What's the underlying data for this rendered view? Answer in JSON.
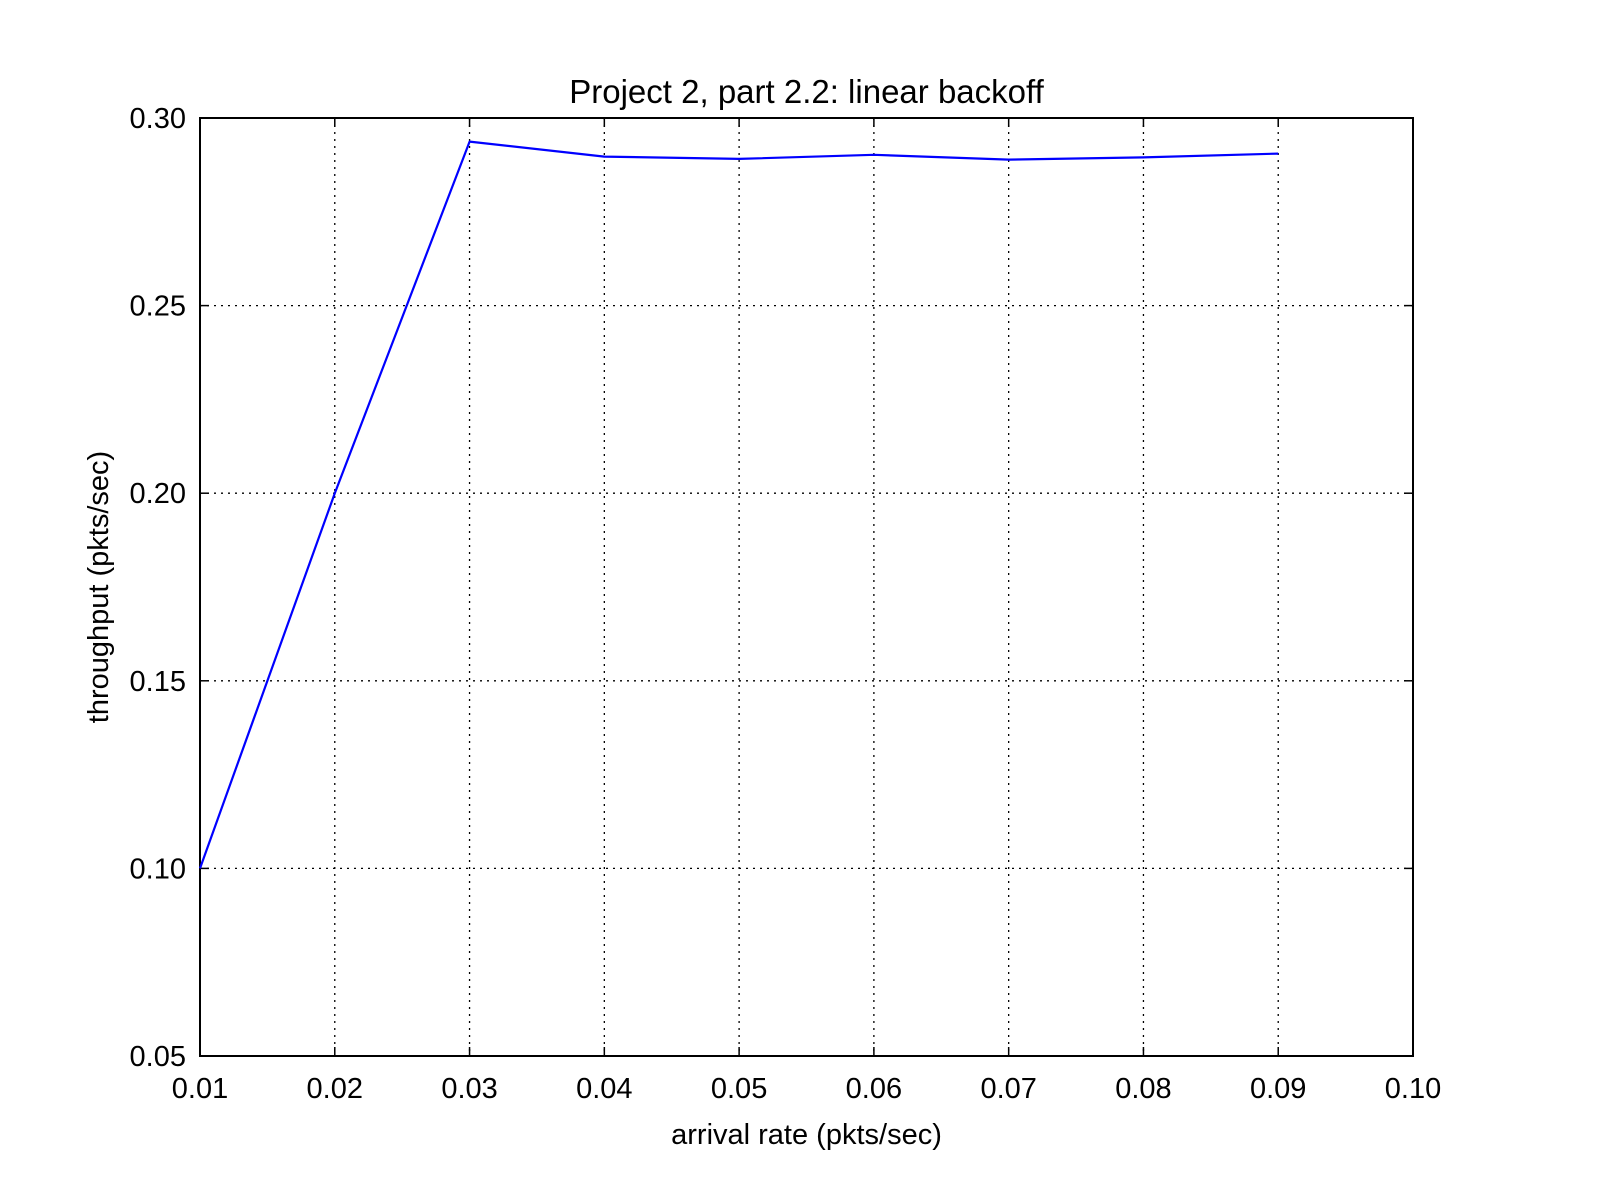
{
  "chart_data": {
    "type": "line",
    "title": "Project 2, part 2.2: linear backoff",
    "xlabel": "arrival rate (pkts/sec)",
    "ylabel": "throughput (pkts/sec)",
    "xlim": [
      0.01,
      0.1
    ],
    "ylim": [
      0.05,
      0.3
    ],
    "xticks": [
      "0.01",
      "0.02",
      "0.03",
      "0.04",
      "0.05",
      "0.06",
      "0.07",
      "0.08",
      "0.09",
      "0.10"
    ],
    "yticks": [
      "0.05",
      "0.10",
      "0.15",
      "0.20",
      "0.25",
      "0.30"
    ],
    "grid": true,
    "series": [
      {
        "color": "#0000ff",
        "x": [
          0.01,
          0.02,
          0.03,
          0.04,
          0.05,
          0.06,
          0.07,
          0.08,
          0.09
        ],
        "y": [
          0.1,
          0.2,
          0.2937,
          0.2897,
          0.2891,
          0.2902,
          0.2889,
          0.2895,
          0.2905
        ]
      }
    ]
  }
}
